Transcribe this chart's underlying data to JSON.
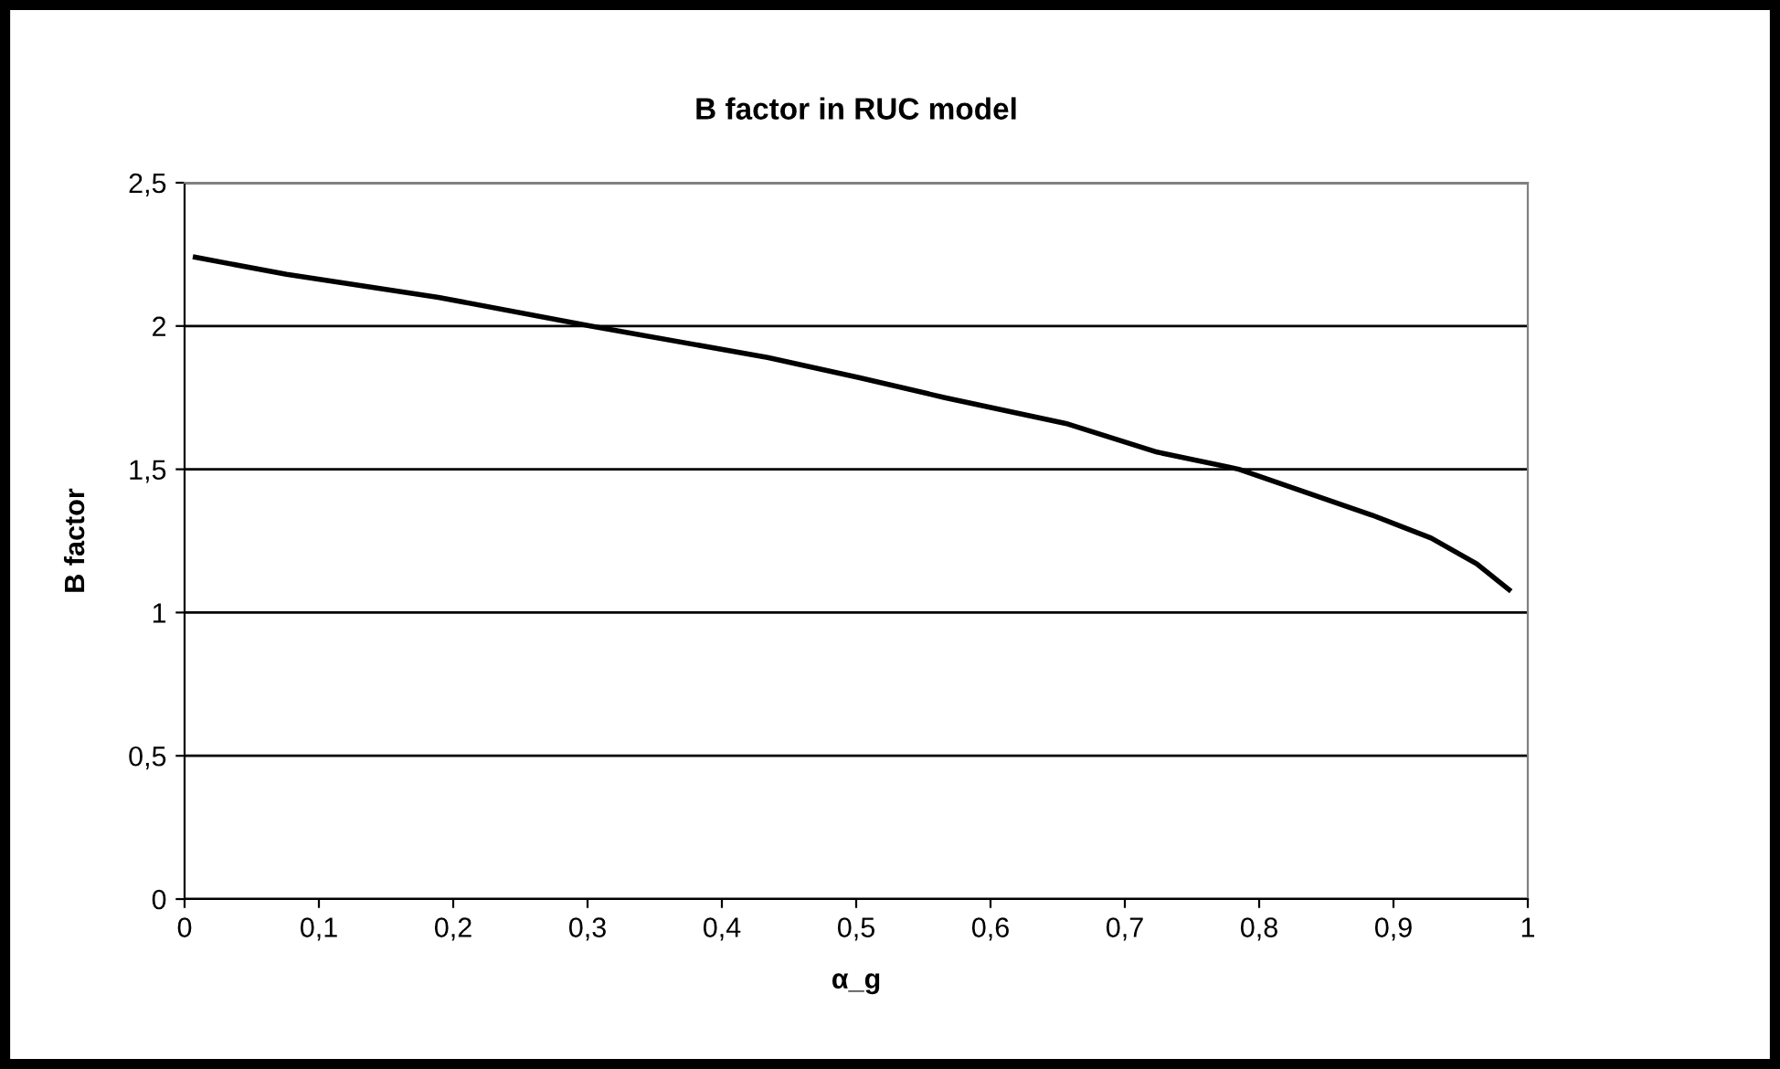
{
  "chart_data": {
    "type": "line",
    "title": "B factor in RUC model",
    "xlabel": "α_g",
    "ylabel": "B factor",
    "series": [
      {
        "color": "#000000",
        "x": [
          0.008,
          0.076,
          0.189,
          0.302,
          0.434,
          0.502,
          0.566,
          0.656,
          0.724,
          0.785,
          0.884,
          0.928,
          0.962,
          0.986
        ],
        "values": [
          2.24,
          2.18,
          2.1,
          2.0,
          1.89,
          1.82,
          1.75,
          1.66,
          1.56,
          1.5,
          1.34,
          1.26,
          1.17,
          1.08
        ]
      }
    ],
    "xlim": [
      0,
      1
    ],
    "xticks": [
      0,
      {
        "value": 0.1,
        "label": "0,1"
      },
      {
        "value": 0.2,
        "label": "0,2"
      },
      {
        "value": 0.3,
        "label": "0,3"
      },
      {
        "value": 0.4,
        "label": "0,4"
      },
      {
        "value": 0.5,
        "label": "0,5"
      },
      {
        "value": 0.6,
        "label": "0,6"
      },
      {
        "value": 0.7,
        "label": "0,7"
      },
      {
        "value": 0.8,
        "label": "0,8"
      },
      {
        "value": 0.9,
        "label": "0,9"
      },
      1
    ],
    "ylim": [
      0,
      2.5
    ],
    "yticks": [
      0,
      {
        "value": 0.5,
        "label": "0,5"
      },
      1,
      {
        "value": 1.5,
        "label": "1,5"
      },
      2,
      {
        "value": 2.5,
        "label": "2,5"
      }
    ],
    "grid": "y",
    "marker": "none",
    "line_style": "solid"
  }
}
